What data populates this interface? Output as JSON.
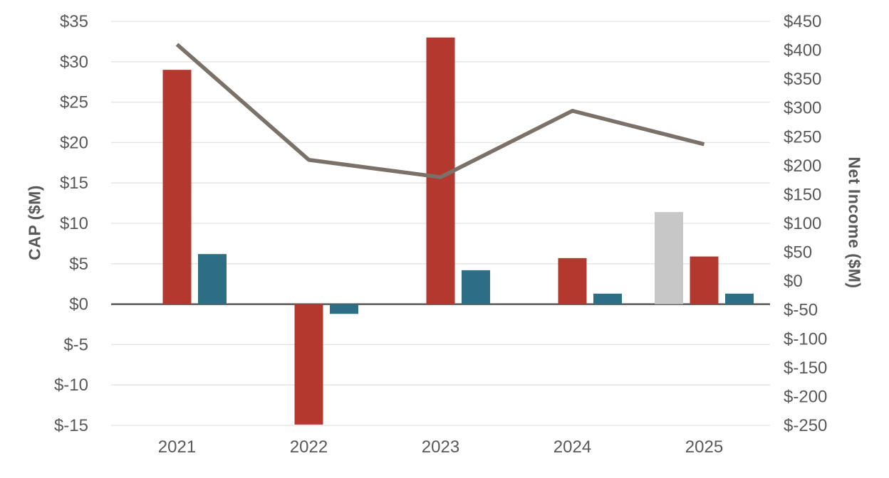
{
  "chart_data": {
    "type": "combo_bar_line",
    "title": "",
    "categories": [
      "2021",
      "2022",
      "2023",
      "2024",
      "2025"
    ],
    "series": [
      {
        "name": "gray-bar-series",
        "type": "bar",
        "axis": "left",
        "color": "#C7C7C7",
        "values": [
          null,
          null,
          null,
          null,
          11.4
        ]
      },
      {
        "name": "red-bar-series",
        "type": "bar",
        "axis": "left",
        "color": "#B5382F",
        "values": [
          29.0,
          -14.9,
          33.0,
          5.7,
          5.9
        ]
      },
      {
        "name": "teal-bar-series",
        "type": "bar",
        "axis": "left",
        "color": "#2D6E84",
        "values": [
          6.2,
          -1.2,
          4.2,
          1.3,
          1.3
        ]
      },
      {
        "name": "net-income-line-series",
        "type": "line",
        "axis": "right",
        "color": "#7A7169",
        "values": [
          410,
          210,
          180,
          295,
          237
        ]
      }
    ],
    "left_axis": {
      "label": "CAP ($M)",
      "min": -15,
      "max": 35,
      "step": 5,
      "tick_labels": [
        "$35",
        "$30",
        "$25",
        "$20",
        "$15",
        "$10",
        "$5",
        "$0",
        "$-5",
        "$-10",
        "$-15"
      ]
    },
    "right_axis": {
      "label": "Net Income ($M)",
      "min": -250,
      "max": 450,
      "step": 50,
      "tick_labels": [
        "$450",
        "$400",
        "$350",
        "$300",
        "$250",
        "$200",
        "$150",
        "$100",
        "$50",
        "$0",
        "$-50",
        "$-100",
        "$-150",
        "$-200",
        "$-250"
      ]
    },
    "grid": true,
    "legend": false,
    "colors": {
      "text": "#595959",
      "gridline": "#E3E3E3",
      "zero_axis_line": "#5A5A5A"
    }
  }
}
